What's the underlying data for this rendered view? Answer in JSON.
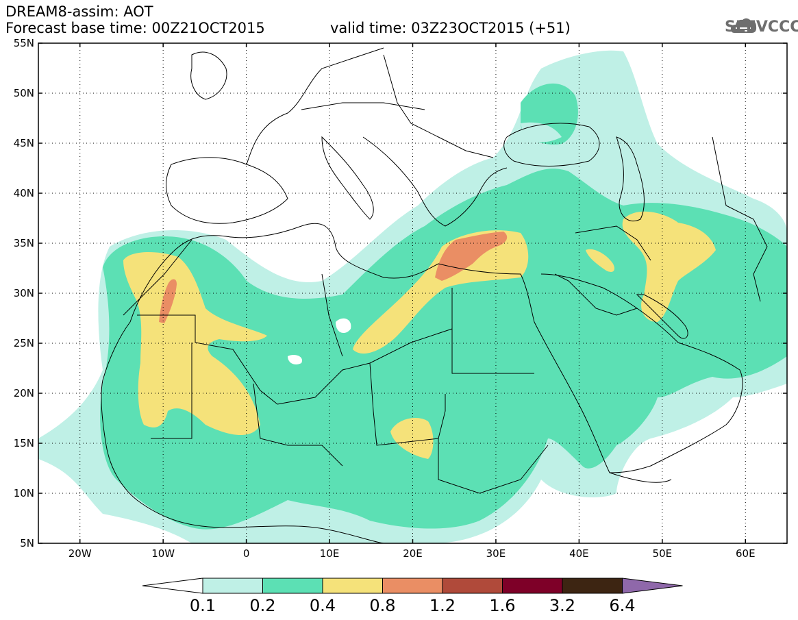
{
  "header": {
    "product_line": "DREAM8-assim: AOT",
    "base_time_line": "Forecast base time: 00Z21OCT2015",
    "valid_time_line": "valid time: 03Z23OCT2015 (+51)"
  },
  "logo": {
    "text": "SEEVCCC",
    "icon": "cloud-icon",
    "color": "#6e6e6e"
  },
  "map": {
    "lon_range": [
      -25,
      65
    ],
    "lat_range": [
      5,
      55
    ],
    "lon_ticks": [
      {
        "lon": -20,
        "label": "20W"
      },
      {
        "lon": -10,
        "label": "10W"
      },
      {
        "lon": 0,
        "label": "0"
      },
      {
        "lon": 10,
        "label": "10E"
      },
      {
        "lon": 20,
        "label": "20E"
      },
      {
        "lon": 30,
        "label": "30E"
      },
      {
        "lon": 40,
        "label": "40E"
      },
      {
        "lon": 50,
        "label": "50E"
      },
      {
        "lon": 60,
        "label": "60E"
      }
    ],
    "lat_ticks": [
      {
        "lat": 55,
        "label": "55N"
      },
      {
        "lat": 50,
        "label": "50N"
      },
      {
        "lat": 45,
        "label": "45N"
      },
      {
        "lat": 40,
        "label": "40N"
      },
      {
        "lat": 35,
        "label": "35N"
      },
      {
        "lat": 30,
        "label": "30N"
      },
      {
        "lat": 25,
        "label": "25N"
      },
      {
        "lat": 20,
        "label": "20N"
      },
      {
        "lat": 15,
        "label": "15N"
      },
      {
        "lat": 10,
        "label": "10N"
      },
      {
        "lat": 5,
        "label": "5N"
      }
    ],
    "grid": "dotted",
    "field": "Aerosol optical thickness"
  },
  "colorbar": {
    "levels": [
      "0.1",
      "0.2",
      "0.4",
      "0.8",
      "1.2",
      "1.6",
      "3.2",
      "6.4"
    ],
    "colors": [
      "#ffffff",
      "#bff0e6",
      "#5ce0b4",
      "#f5e27a",
      "#ea8e64",
      "#b04a3a",
      "#7e0028",
      "#3d2512",
      "#8f68aa"
    ],
    "extend": "both"
  }
}
